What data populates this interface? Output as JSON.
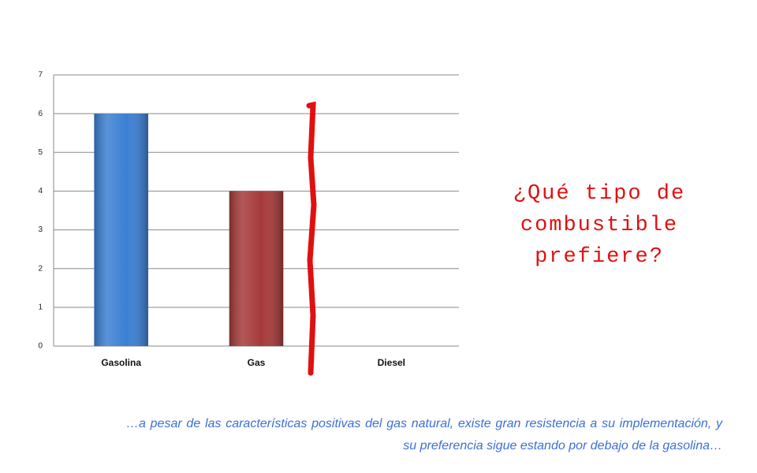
{
  "chart_data": {
    "type": "bar",
    "annotation": "¿Qué tipo de combustible prefiere?",
    "caption": "…a pesar de las características positivas del gas natural, existe gran resistencia a su implementación,  y su preferencia sigue estando por debajo de la gasolina…",
    "categories": [
      "Gasolina",
      "Gas",
      "Diesel"
    ],
    "values": [
      6,
      4,
      0
    ],
    "colors": [
      "#3b7fd4",
      "#a63a3a",
      "#8db04a"
    ],
    "ylim": [
      0,
      7
    ],
    "yticks": [
      0,
      1,
      2,
      3,
      4,
      5,
      6,
      7
    ],
    "grid": true
  }
}
